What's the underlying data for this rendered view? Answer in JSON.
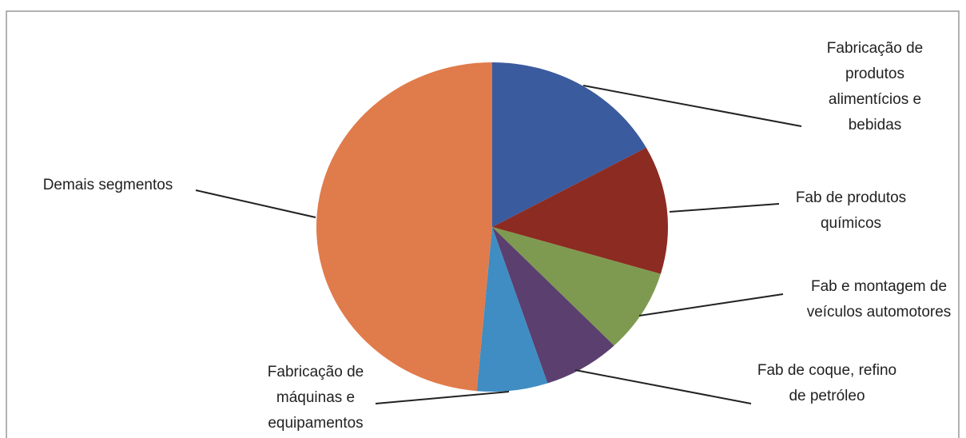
{
  "chart_data": {
    "type": "pie",
    "categories": [
      "Fabricação de produtos alimentícios e bebidas",
      "Fab de produtos químicos",
      "Fab e montagem de veículos automotores",
      "Fab de coque, refino de petróleo",
      "Fabricação de máquinas e equipamentos",
      "Demais segmentos"
    ],
    "values": [
      17,
      12.6,
      8.2,
      7.1,
      6.5,
      48.6
    ],
    "colors": [
      "#3b5b9f",
      "#8c2b22",
      "#7e9a50",
      "#5b3f6f",
      "#3f8dc3",
      "#e07b4b"
    ]
  }
}
